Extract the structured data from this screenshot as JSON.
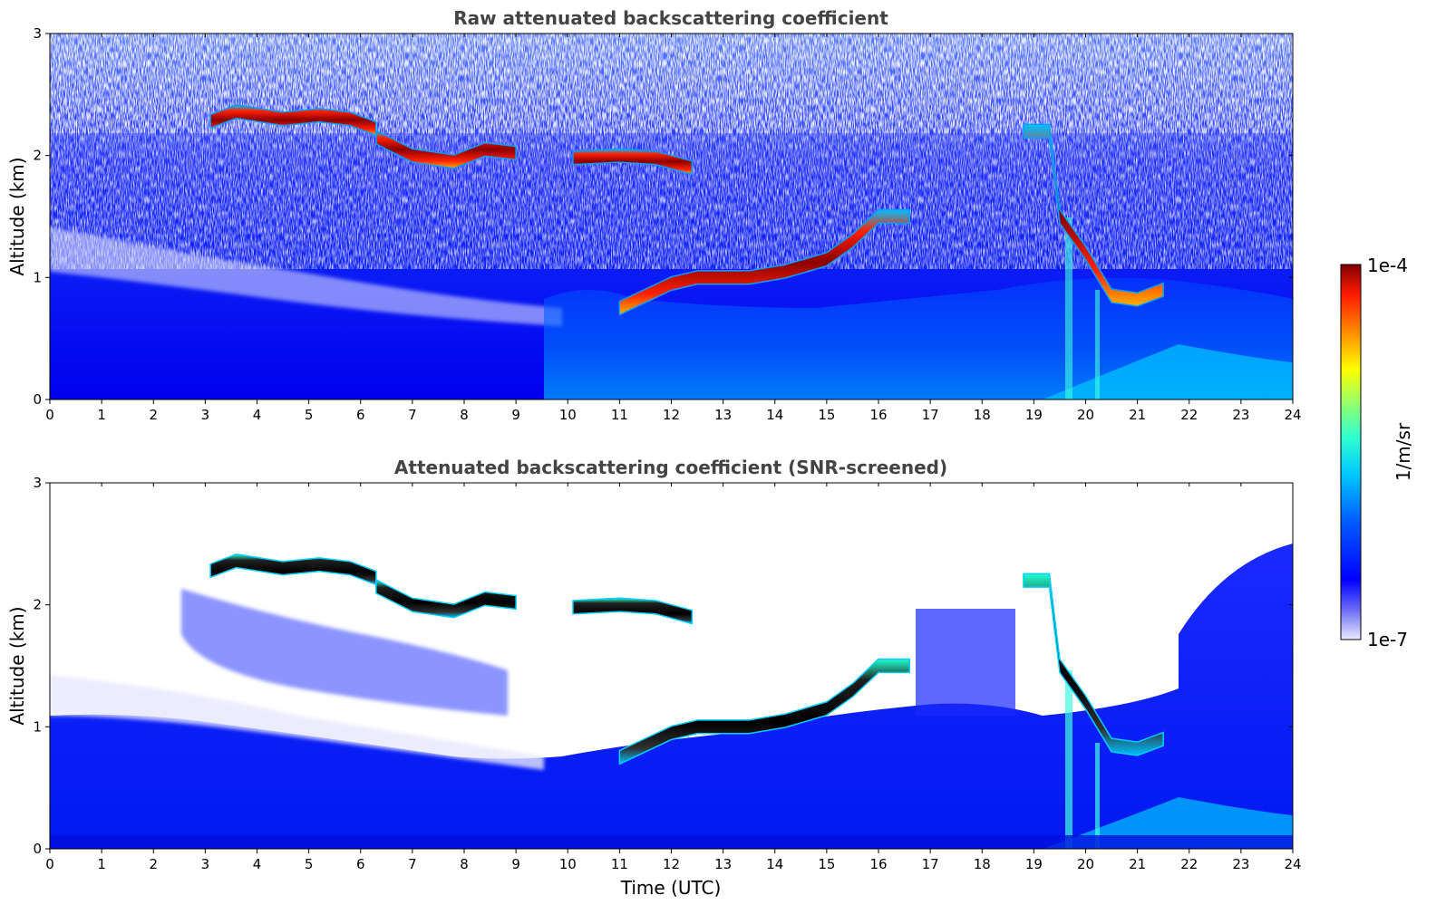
{
  "chart_data": [
    {
      "type": "heatmap",
      "title": "Raw attenuated backscattering coefficient",
      "xlabel": "",
      "ylabel": "Altitude (km)",
      "xlim": [
        0,
        24
      ],
      "ylim": [
        0,
        3
      ],
      "xticks": [
        "0",
        "1",
        "2",
        "3",
        "4",
        "5",
        "6",
        "7",
        "8",
        "9",
        "10",
        "11",
        "12",
        "13",
        "14",
        "15",
        "16",
        "17",
        "18",
        "19",
        "20",
        "21",
        "22",
        "23",
        "24"
      ],
      "yticks": [
        "0",
        "1",
        "2",
        "3"
      ],
      "screened": false,
      "cloud_layers": [
        {
          "x": [
            3.1,
            3.6,
            4.5,
            5.2,
            5.8,
            6.3
          ],
          "y": [
            2.28,
            2.36,
            2.3,
            2.33,
            2.3,
            2.22
          ],
          "value": "high"
        },
        {
          "x": [
            6.3,
            7.0,
            7.8,
            8.4,
            9.0
          ],
          "y": [
            2.15,
            2.0,
            1.95,
            2.05,
            2.02
          ],
          "value": "high"
        },
        {
          "x": [
            10.1,
            11.0,
            11.7,
            12.4
          ],
          "y": [
            1.98,
            2.0,
            1.98,
            1.9
          ],
          "value": "high"
        },
        {
          "x": [
            11.0,
            11.5,
            12.0,
            12.5,
            13.5,
            14.2,
            15.0,
            15.5,
            16.0,
            16.6
          ],
          "y": [
            0.75,
            0.85,
            0.95,
            1.0,
            1.0,
            1.05,
            1.15,
            1.3,
            1.5,
            1.5
          ],
          "value": "high"
        },
        {
          "x": [
            18.8,
            19.3,
            19.5,
            20.0,
            20.5,
            21.0,
            21.5
          ],
          "y": [
            2.2,
            2.2,
            1.5,
            1.2,
            0.85,
            0.82,
            0.9
          ],
          "value": "high"
        }
      ]
    },
    {
      "type": "heatmap",
      "title": "Attenuated backscattering coefficient (SNR-screened)",
      "xlabel": "Time (UTC)",
      "ylabel": "Altitude (km)",
      "xlim": [
        0,
        24
      ],
      "ylim": [
        0,
        3
      ],
      "xticks": [
        "0",
        "1",
        "2",
        "3",
        "4",
        "5",
        "6",
        "7",
        "8",
        "9",
        "10",
        "11",
        "12",
        "13",
        "14",
        "15",
        "16",
        "17",
        "18",
        "19",
        "20",
        "21",
        "22",
        "23",
        "24"
      ],
      "yticks": [
        "0",
        "1",
        "2",
        "3"
      ],
      "screened": true
    }
  ],
  "colorbar": {
    "label": "1/m/sr",
    "max_label": "1e-4",
    "min_label": "1e-7",
    "scale": "log",
    "range": [
      1e-07,
      0.0001
    ]
  }
}
